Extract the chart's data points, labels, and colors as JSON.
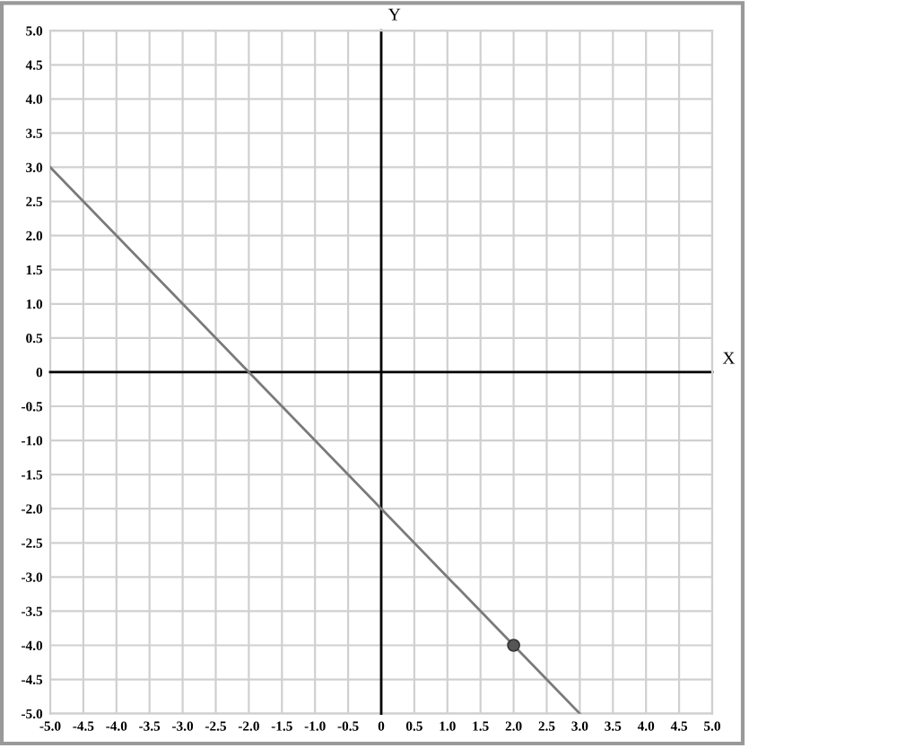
{
  "chart_data": {
    "type": "line",
    "xlabel": "X",
    "ylabel": "Y",
    "series": [
      {
        "color": "#7a7a7a",
        "x": [
          -5,
          3
        ],
        "values": [
          3,
          -5
        ],
        "marker": "none"
      },
      {
        "type": "scatter",
        "color": "#555555",
        "x": [
          2
        ],
        "values": [
          -4
        ],
        "marker": "circle"
      }
    ],
    "xlim": [
      -5,
      5
    ],
    "ylim": [
      -5,
      5
    ],
    "xticks": [
      {
        "value": -5,
        "label": "-5.0"
      },
      -4.5,
      {
        "value": -4,
        "label": "-4.0"
      },
      -3.5,
      {
        "value": -3,
        "label": "-3.0"
      },
      -2.5,
      {
        "value": -2,
        "label": "-2.0"
      },
      -1.5,
      {
        "value": -1,
        "label": "-1.0"
      },
      -0.5,
      0,
      0.5,
      {
        "value": 1,
        "label": "1.0"
      },
      1.5,
      {
        "value": 2,
        "label": "2.0"
      },
      2.5,
      {
        "value": 3,
        "label": "3.0"
      },
      3.5,
      {
        "value": 4,
        "label": "4.0"
      },
      4.5,
      {
        "value": 5,
        "label": "5.0"
      }
    ],
    "yticks": [
      {
        "value": -5,
        "label": "-5.0"
      },
      -4.5,
      {
        "value": -4,
        "label": "-4.0"
      },
      -3.5,
      {
        "value": -3,
        "label": "-3.0"
      },
      -2.5,
      {
        "value": -2,
        "label": "-2.0"
      },
      -1.5,
      {
        "value": -1,
        "label": "-1.0"
      },
      -0.5,
      0,
      0.5,
      {
        "value": 1,
        "label": "1.0"
      },
      1.5,
      {
        "value": 2,
        "label": "2.0"
      },
      2.5,
      {
        "value": 3,
        "label": "3.0"
      },
      3.5,
      {
        "value": 4,
        "label": "4.0"
      },
      4.5,
      {
        "value": 5,
        "label": "5.0"
      }
    ],
    "grid": true
  }
}
